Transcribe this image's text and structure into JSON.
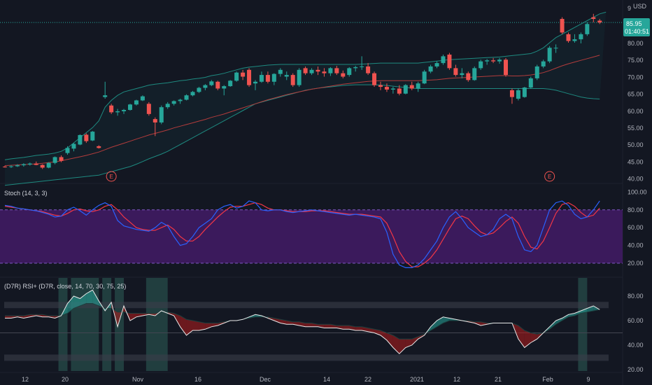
{
  "colors": {
    "background": "#131722",
    "up": "#26a69a",
    "down": "#ef5350",
    "bb_band": "#1e8a80",
    "bb_mid": "#b33c3c",
    "stoch_k": "#2962ff",
    "stoch_d": "#f23645",
    "stoch_fill": "#3b1a5c",
    "rsi_line": "#e8e8e8",
    "rsi_fast": "#1d3f3e",
    "highlight": "#2d5e58",
    "price_badge": "#26a69a",
    "earnings": "#ef5350"
  },
  "price_axis": {
    "currency": "USD",
    "ticks": [
      "9",
      "80.00",
      "75.00",
      "70.00",
      "65.00",
      "60.00",
      "55.00",
      "50.00",
      "45.00",
      "40.00"
    ],
    "last_price": "85.95",
    "countdown": "01:40:51"
  },
  "stoch": {
    "label": "Stoch (14, 3, 3)",
    "ticks": [
      "100.00",
      "80.00",
      "60.00",
      "40.00",
      "20.00"
    ]
  },
  "rsi": {
    "label": "(D7R) RSI+ (D7R, close, 14, 70, 30, 75, 25)",
    "ticks": [
      "80.00",
      "60.00",
      "40.00",
      "20.00"
    ]
  },
  "earnings_marker": "E",
  "time_axis": [
    "12",
    "20",
    "Nov",
    "16",
    "Dec",
    "14",
    "22",
    "2021",
    "12",
    "21",
    "Feb",
    "9"
  ],
  "chart_data": {
    "type": "candlestick",
    "ylim": [
      38,
      92
    ],
    "candles": [
      [
        43.5,
        43.8,
        43.2,
        43.4
      ],
      [
        43.4,
        43.9,
        43.1,
        43.6
      ],
      [
        43.6,
        44.2,
        43.4,
        43.9
      ],
      [
        43.9,
        44.5,
        43.5,
        44.2
      ],
      [
        44.1,
        44.7,
        43.8,
        44.4
      ],
      [
        44.4,
        45.0,
        43.9,
        44.0
      ],
      [
        44.0,
        44.2,
        42.8,
        43.2
      ],
      [
        43.2,
        44.8,
        43.0,
        44.6
      ],
      [
        44.6,
        46.5,
        44.2,
        46.3
      ],
      [
        46.3,
        46.8,
        44.8,
        45.2
      ],
      [
        47.5,
        49.5,
        47.0,
        49.0
      ],
      [
        48.8,
        50.5,
        48.0,
        50.2
      ],
      [
        50.0,
        53.0,
        49.8,
        52.8
      ],
      [
        52.9,
        53.3,
        50.5,
        51.0
      ],
      [
        51.2,
        54.0,
        51.0,
        53.8
      ],
      [
        49.5,
        49.8,
        48.8,
        49.0
      ],
      [
        64.0,
        68.5,
        63.5,
        64.5
      ],
      [
        61.5,
        62.0,
        59.0,
        59.5
      ],
      [
        59.5,
        60.5,
        58.5,
        59.8
      ],
      [
        59.8,
        60.5,
        59.0,
        60.2
      ],
      [
        60.2,
        62.0,
        60.0,
        61.8
      ],
      [
        61.8,
        63.2,
        61.5,
        63.0
      ],
      [
        63.0,
        64.5,
        62.8,
        64.2
      ],
      [
        62.0,
        62.5,
        58.5,
        59.0
      ],
      [
        57.5,
        58.0,
        52.5,
        56.5
      ],
      [
        56.5,
        61.5,
        56.0,
        61.0
      ],
      [
        61.0,
        62.5,
        60.5,
        62.0
      ],
      [
        62.0,
        63.0,
        61.5,
        62.8
      ],
      [
        62.8,
        63.5,
        62.0,
        63.2
      ],
      [
        63.2,
        64.8,
        63.0,
        64.5
      ],
      [
        64.5,
        65.8,
        64.2,
        65.5
      ],
      [
        65.5,
        67.0,
        65.2,
        66.7
      ],
      [
        66.7,
        67.8,
        66.0,
        67.5
      ],
      [
        67.5,
        69.0,
        67.2,
        68.6
      ],
      [
        68.5,
        68.8,
        66.0,
        66.5
      ],
      [
        66.5,
        67.5,
        64.5,
        67.2
      ],
      [
        67.2,
        69.0,
        67.0,
        68.8
      ],
      [
        68.8,
        71.5,
        68.5,
        71.2
      ],
      [
        71.2,
        72.0,
        69.0,
        70.0
      ],
      [
        72.0,
        72.5,
        67.0,
        67.5
      ],
      [
        68.0,
        69.0,
        66.0,
        68.5
      ],
      [
        68.5,
        71.5,
        68.2,
        70.5
      ],
      [
        70.5,
        71.5,
        68.0,
        68.5
      ],
      [
        68.5,
        71.0,
        67.5,
        70.8
      ],
      [
        70.8,
        72.5,
        70.0,
        72.0
      ],
      [
        70.0,
        71.5,
        69.0,
        70.5
      ],
      [
        70.5,
        71.0,
        67.0,
        67.5
      ],
      [
        67.5,
        72.5,
        67.0,
        72.0
      ],
      [
        72.5,
        73.0,
        70.5,
        71.0
      ],
      [
        71.0,
        72.5,
        70.5,
        72.0
      ],
      [
        72.0,
        73.0,
        70.5,
        71.5
      ],
      [
        71.5,
        72.5,
        70.0,
        71.0
      ],
      [
        71.0,
        72.8,
        70.2,
        72.5
      ],
      [
        72.5,
        73.2,
        70.5,
        71.0
      ],
      [
        71.0,
        71.8,
        69.5,
        70.0
      ],
      [
        70.5,
        72.8,
        70.0,
        72.5
      ],
      [
        72.5,
        73.2,
        71.5,
        72.8
      ],
      [
        72.8,
        76.0,
        72.0,
        73.0
      ],
      [
        73.0,
        74.0,
        70.5,
        71.0
      ],
      [
        71.0,
        71.5,
        67.0,
        67.5
      ],
      [
        67.5,
        68.5,
        66.0,
        67.0
      ],
      [
        67.0,
        68.0,
        65.5,
        66.2
      ],
      [
        66.2,
        67.0,
        65.0,
        66.5
      ],
      [
        66.5,
        67.5,
        64.5,
        65.0
      ],
      [
        65.0,
        67.8,
        64.8,
        67.5
      ],
      [
        67.5,
        68.5,
        66.0,
        66.5
      ],
      [
        66.5,
        68.5,
        65.5,
        68.0
      ],
      [
        68.0,
        72.0,
        67.8,
        71.5
      ],
      [
        71.5,
        73.5,
        71.0,
        73.0
      ],
      [
        73.0,
        74.5,
        72.5,
        74.0
      ],
      [
        74.0,
        76.5,
        73.5,
        76.0
      ],
      [
        76.5,
        77.0,
        72.0,
        72.5
      ],
      [
        72.5,
        73.5,
        70.0,
        70.5
      ],
      [
        70.5,
        72.5,
        69.5,
        71.0
      ],
      [
        71.0,
        71.5,
        68.5,
        69.0
      ],
      [
        69.0,
        73.0,
        68.8,
        72.5
      ],
      [
        72.5,
        75.0,
        72.0,
        74.5
      ],
      [
        74.5,
        75.2,
        73.5,
        74.8
      ],
      [
        74.8,
        75.5,
        74.0,
        74.5
      ],
      [
        74.5,
        75.5,
        73.8,
        75.0
      ],
      [
        75.0,
        75.5,
        70.0,
        70.5
      ],
      [
        66.0,
        66.5,
        62.0,
        64.0
      ],
      [
        63.5,
        66.5,
        63.0,
        66.0
      ],
      [
        64.0,
        67.0,
        63.8,
        66.8
      ],
      [
        66.8,
        70.0,
        66.5,
        69.5
      ],
      [
        69.5,
        73.5,
        69.0,
        73.0
      ],
      [
        73.0,
        75.0,
        72.5,
        74.5
      ],
      [
        74.5,
        79.0,
        74.0,
        78.5
      ],
      [
        78.5,
        79.5,
        77.0,
        78.5
      ],
      [
        87.0,
        87.5,
        82.5,
        83.0
      ],
      [
        82.5,
        83.0,
        80.0,
        80.5
      ],
      [
        80.5,
        82.5,
        80.0,
        81.0
      ],
      [
        81.0,
        83.0,
        79.8,
        82.5
      ],
      [
        82.5,
        86.0,
        82.0,
        85.5
      ],
      [
        87.5,
        88.5,
        86.0,
        87.0
      ],
      [
        86.5,
        87.0,
        85.5,
        85.95
      ]
    ],
    "bollinger_upper": [
      45.5,
      45.8,
      46,
      46.2,
      46.5,
      46.8,
      47,
      47.2,
      47.5,
      48,
      49,
      50.5,
      52,
      53.5,
      55,
      57,
      61,
      63,
      64.5,
      65.5,
      66,
      66.5,
      67,
      67.5,
      67.8,
      68,
      68.2,
      68.5,
      68.8,
      69,
      69.3,
      69.5,
      69.8,
      70.3,
      70.6,
      71,
      71.5,
      72,
      72.5,
      72.8,
      73,
      73.2,
      73.4,
      73.5,
      73.6,
      73.6,
      73.6,
      73.6,
      73.6,
      73.6,
      73.6,
      73.6,
      73.6,
      73.6,
      73.6,
      73.6,
      73.6,
      73.7,
      73.8,
      73.9,
      74,
      74,
      74,
      74,
      74,
      74,
      74,
      74.2,
      74.4,
      74.6,
      74.8,
      75,
      75.1,
      75.2,
      75.3,
      75.4,
      75.5,
      75.6,
      75.7,
      75.8,
      76,
      76.2,
      76.4,
      76.6,
      76.8,
      77.5,
      78.5,
      80,
      81.5,
      82.5,
      83.5,
      84.5,
      85.5,
      86.5,
      87.5,
      88.5,
      89
    ],
    "bollinger_mid": [
      43.8,
      43.9,
      44,
      44.1,
      44.2,
      44.3,
      44.5,
      44.7,
      44.9,
      45.2,
      45.6,
      46,
      46.4,
      46.8,
      47.3,
      47.8,
      48.5,
      49.2,
      49.8,
      50.4,
      51,
      51.6,
      52.2,
      52.8,
      53.3,
      53.8,
      54.3,
      54.9,
      55.4,
      55.9,
      56.4,
      56.9,
      57.4,
      58,
      58.5,
      59,
      59.6,
      60.2,
      60.8,
      61.4,
      62,
      62.6,
      63.2,
      63.7,
      64.2,
      64.7,
      65.1,
      65.5,
      65.9,
      66.3,
      66.6,
      66.9,
      67.2,
      67.5,
      67.8,
      68,
      68.2,
      68.4,
      68.6,
      68.7,
      68.8,
      68.8,
      68.8,
      68.8,
      68.8,
      68.8,
      68.8,
      68.9,
      69,
      69.1,
      69.3,
      69.5,
      69.6,
      69.7,
      69.8,
      69.9,
      70,
      70.1,
      70.2,
      70.3,
      70.3,
      70.2,
      70.2,
      70.3,
      70.5,
      70.8,
      71.2,
      71.8,
      72.5,
      73.2,
      73.8,
      74.3,
      74.8,
      75.3,
      75.8,
      76.3
    ],
    "bollinger_lower": [
      38,
      38.2,
      38.4,
      38.6,
      38.8,
      39,
      39.2,
      39.4,
      39.6,
      39.8,
      40,
      40.2,
      40.4,
      40.6,
      40.8,
      41,
      41.5,
      42,
      42.5,
      43,
      43.5,
      44.2,
      45,
      45.8,
      46.5,
      47.2,
      48,
      49,
      50,
      51,
      52,
      53,
      54,
      55,
      56,
      57,
      58,
      59,
      60,
      61,
      62,
      62.5,
      63,
      63.5,
      64,
      64.5,
      65,
      65.5,
      66,
      66.3,
      66.6,
      66.8,
      67,
      67.2,
      67.4,
      67.5,
      67.6,
      67.6,
      67.6,
      67.6,
      67.5,
      67.4,
      67.2,
      67,
      66.8,
      66.6,
      66.5,
      66.5,
      66.5,
      66.5,
      66.5,
      66.5,
      66.5,
      66.5,
      66.5,
      66.5,
      66.5,
      66.5,
      66.5,
      66.5,
      66.5,
      66.5,
      66.5,
      66.5,
      66.5,
      66.5,
      66.5,
      66.3,
      66,
      65.5,
      65,
      64.5,
      64,
      63.7,
      63.5,
      63.4
    ],
    "stoch_k": [
      85,
      84,
      82,
      81,
      80,
      79,
      77,
      75,
      72,
      73,
      80,
      83,
      79,
      74,
      80,
      85,
      88,
      84,
      68,
      62,
      60,
      58,
      57,
      56,
      60,
      66,
      62,
      50,
      40,
      42,
      50,
      60,
      65,
      70,
      80,
      84,
      86,
      82,
      84,
      90,
      88,
      80,
      79,
      80,
      80,
      78,
      77,
      78,
      79,
      80,
      79,
      78,
      77,
      76,
      75,
      74,
      75,
      74,
      73,
      72,
      70,
      55,
      30,
      18,
      15,
      15,
      18,
      25,
      35,
      45,
      60,
      72,
      78,
      70,
      60,
      55,
      50,
      52,
      58,
      70,
      75,
      70,
      50,
      35,
      33,
      40,
      60,
      80,
      88,
      90,
      85,
      75,
      70,
      72,
      80,
      90
    ],
    "stoch_d": [
      84,
      83,
      82,
      81,
      80,
      79,
      78,
      76,
      74,
      73,
      76,
      80,
      81,
      79,
      78,
      80,
      84,
      86,
      80,
      72,
      66,
      60,
      58,
      57,
      57,
      60,
      63,
      58,
      50,
      45,
      45,
      50,
      58,
      65,
      72,
      78,
      83,
      84,
      84,
      86,
      88,
      86,
      82,
      80,
      80,
      79,
      78,
      78,
      78,
      79,
      79,
      79,
      78,
      77,
      76,
      75,
      75,
      75,
      74,
      73,
      72,
      65,
      50,
      33,
      22,
      16,
      16,
      20,
      26,
      35,
      47,
      59,
      70,
      73,
      70,
      62,
      55,
      52,
      54,
      60,
      67,
      72,
      65,
      50,
      38,
      36,
      45,
      60,
      76,
      86,
      88,
      84,
      77,
      72,
      74,
      82
    ],
    "rsi": [
      62,
      62,
      63,
      62,
      63,
      64,
      63,
      63,
      62,
      64,
      74,
      80,
      78,
      82,
      85,
      76,
      68,
      75,
      55,
      72,
      60,
      63,
      64,
      65,
      64,
      68,
      66,
      64,
      55,
      48,
      52,
      52,
      53,
      55,
      56,
      58,
      60,
      60,
      61,
      63,
      65,
      64,
      62,
      60,
      58,
      57,
      57,
      56,
      55,
      55,
      55,
      54,
      54,
      54,
      53,
      53,
      52,
      52,
      51,
      50,
      48,
      44,
      38,
      33,
      38,
      40,
      45,
      48,
      55,
      60,
      63,
      62,
      61,
      60,
      59,
      58,
      56,
      57,
      58,
      58,
      58,
      58,
      45,
      38,
      42,
      45,
      50,
      55,
      60,
      62,
      65,
      66,
      68,
      70,
      72,
      69
    ],
    "rsi_fast": [
      64,
      64,
      64,
      64,
      65,
      65,
      65,
      64,
      64,
      64,
      66,
      70,
      72,
      74,
      74,
      72,
      70,
      70,
      67,
      67,
      66,
      66,
      66,
      66,
      66,
      67,
      67,
      66,
      64,
      61,
      60,
      59,
      58,
      58,
      58,
      59,
      60,
      60,
      61,
      62,
      63,
      63,
      63,
      62,
      61,
      60,
      59,
      59,
      58,
      58,
      57,
      57,
      57,
      56,
      56,
      56,
      55,
      55,
      54,
      53,
      52,
      50,
      48,
      45,
      45,
      45,
      47,
      49,
      52,
      55,
      58,
      60,
      60,
      60,
      60,
      59,
      59,
      58,
      58,
      58,
      58,
      58,
      56,
      52,
      50,
      49,
      50,
      53,
      57,
      60,
      63,
      64,
      66,
      67,
      68,
      69
    ],
    "rsi_highlight_ranges": [
      [
        9,
        10
      ],
      [
        11,
        15
      ],
      [
        16,
        17
      ],
      [
        18,
        19
      ],
      [
        23,
        26
      ],
      [
        92,
        93
      ]
    ],
    "earnings_at": [
      17,
      87
    ]
  }
}
